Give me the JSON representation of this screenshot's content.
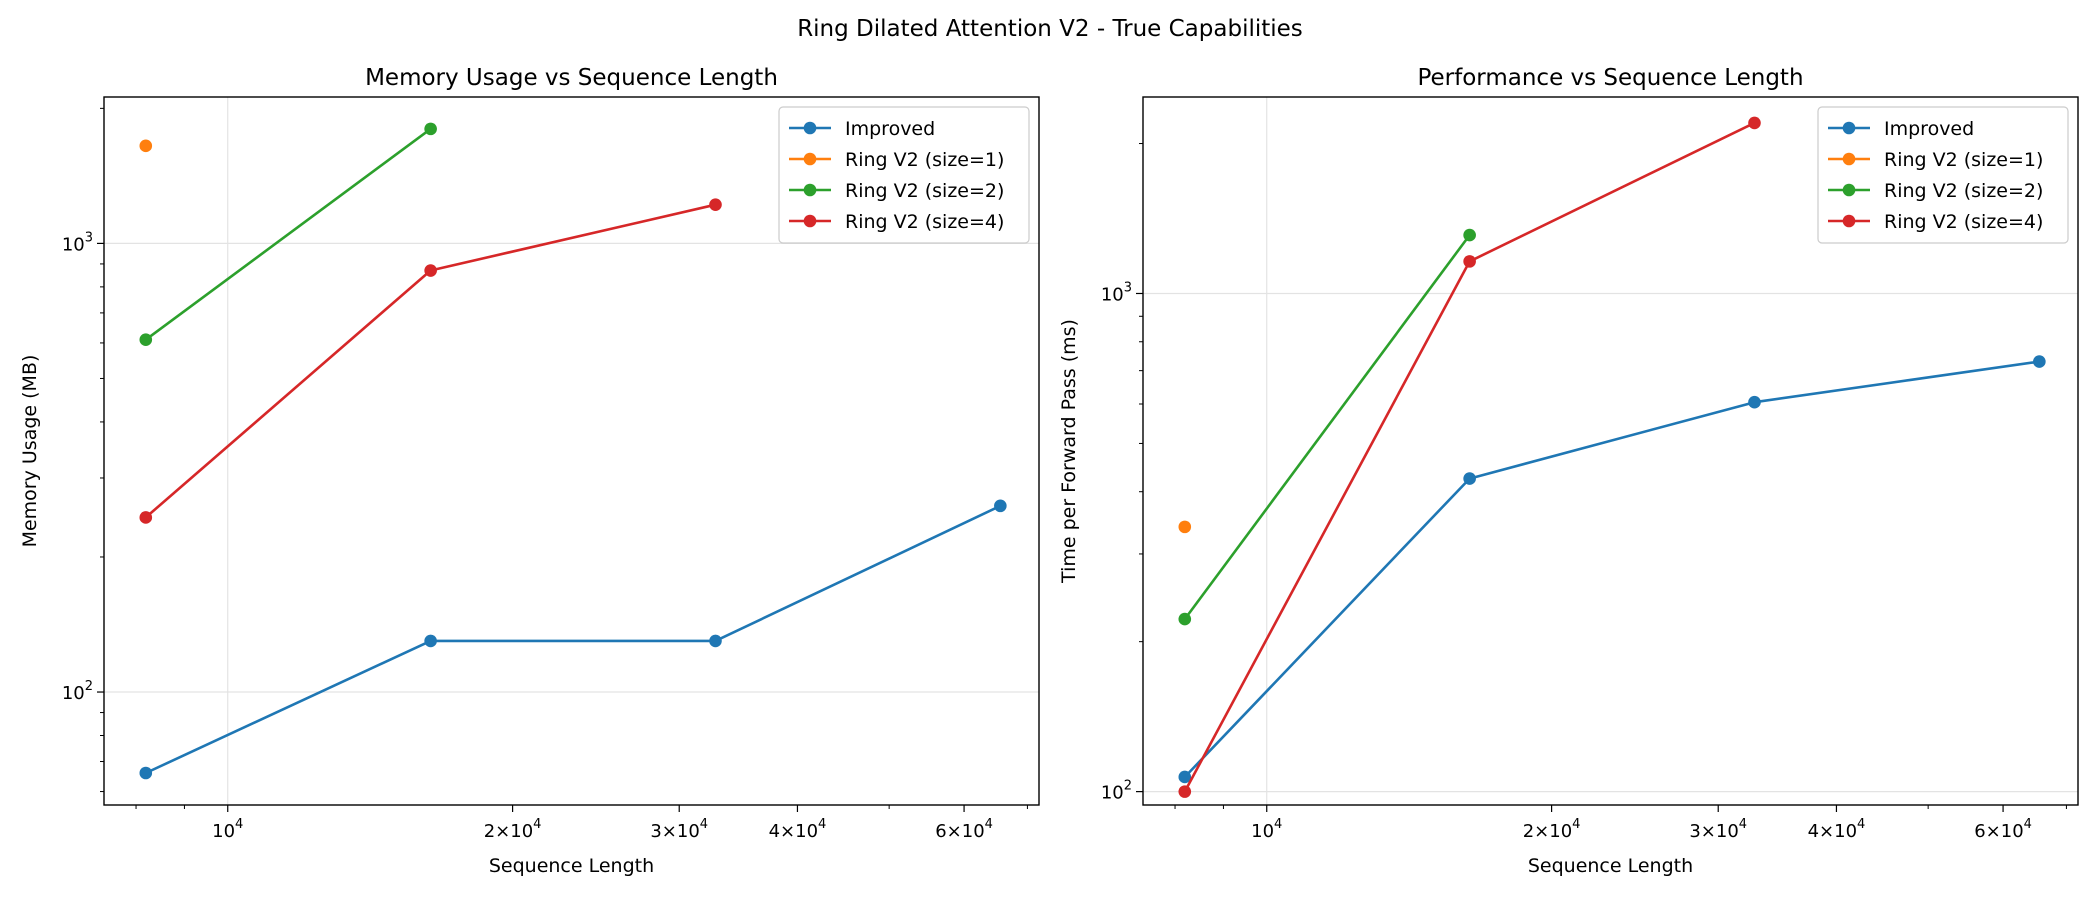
{
  "figure": {
    "suptitle": "Ring Dilated Attention V2 - True Capabilities"
  },
  "chart_data": [
    {
      "type": "line",
      "title": "Memory Usage vs Sequence Length",
      "xlabel": "Sequence Length",
      "ylabel": "Memory Usage (MB)",
      "xscale": "log",
      "yscale": "log",
      "xlim": [
        7400,
        72000
      ],
      "ylim": [
        56,
        2120
      ],
      "grid": true,
      "legend_position": "upper right",
      "xticks": [
        {
          "value": 10000,
          "base": "10",
          "exp": "4"
        },
        {
          "value": 20000,
          "base": "2×10",
          "exp": "4"
        },
        {
          "value": 30000,
          "base": "3×10",
          "exp": "4"
        },
        {
          "value": 40000,
          "base": "4×10",
          "exp": "4"
        },
        {
          "value": 60000,
          "base": "6×10",
          "exp": "4"
        }
      ],
      "yticks": [
        {
          "value": 100,
          "base": "10",
          "exp": "2"
        },
        {
          "value": 1000,
          "base": "10",
          "exp": "3"
        }
      ],
      "series": [
        {
          "name": "Improved",
          "color": "#1f77b4",
          "x": [
            8192,
            16384,
            32768,
            65536
          ],
          "y": [
            66,
            130,
            130,
            260
          ]
        },
        {
          "name": "Ring V2 (size=1)",
          "color": "#ff7f0e",
          "x": [
            8192
          ],
          "y": [
            1650
          ]
        },
        {
          "name": "Ring V2 (size=2)",
          "color": "#2ca02c",
          "x": [
            8192,
            16384
          ],
          "y": [
            610,
            1800
          ]
        },
        {
          "name": "Ring V2 (size=4)",
          "color": "#d62728",
          "x": [
            8192,
            16384,
            32768
          ],
          "y": [
            245,
            870,
            1220
          ]
        }
      ]
    },
    {
      "type": "line",
      "title": "Performance vs Sequence Length",
      "xlabel": "Sequence Length",
      "ylabel": "Time per Forward Pass (ms)",
      "xscale": "log",
      "yscale": "log",
      "xlim": [
        7400,
        72000
      ],
      "ylim": [
        94,
        2480
      ],
      "grid": true,
      "legend_position": "upper right",
      "xticks": [
        {
          "value": 10000,
          "base": "10",
          "exp": "4"
        },
        {
          "value": 20000,
          "base": "2×10",
          "exp": "4"
        },
        {
          "value": 30000,
          "base": "3×10",
          "exp": "4"
        },
        {
          "value": 40000,
          "base": "4×10",
          "exp": "4"
        },
        {
          "value": 60000,
          "base": "6×10",
          "exp": "4"
        }
      ],
      "yticks": [
        {
          "value": 100,
          "base": "10",
          "exp": "2"
        },
        {
          "value": 1000,
          "base": "10",
          "exp": "3"
        }
      ],
      "series": [
        {
          "name": "Improved",
          "color": "#1f77b4",
          "x": [
            8192,
            16384,
            32768,
            65536
          ],
          "y": [
            107,
            425,
            605,
            730
          ]
        },
        {
          "name": "Ring V2 (size=1)",
          "color": "#ff7f0e",
          "x": [
            8192
          ],
          "y": [
            340
          ]
        },
        {
          "name": "Ring V2 (size=2)",
          "color": "#2ca02c",
          "x": [
            8192,
            16384
          ],
          "y": [
            222,
            1310
          ]
        },
        {
          "name": "Ring V2 (size=4)",
          "color": "#d62728",
          "x": [
            8192,
            16384,
            32768
          ],
          "y": [
            100,
            1160,
            2200
          ]
        }
      ]
    }
  ]
}
